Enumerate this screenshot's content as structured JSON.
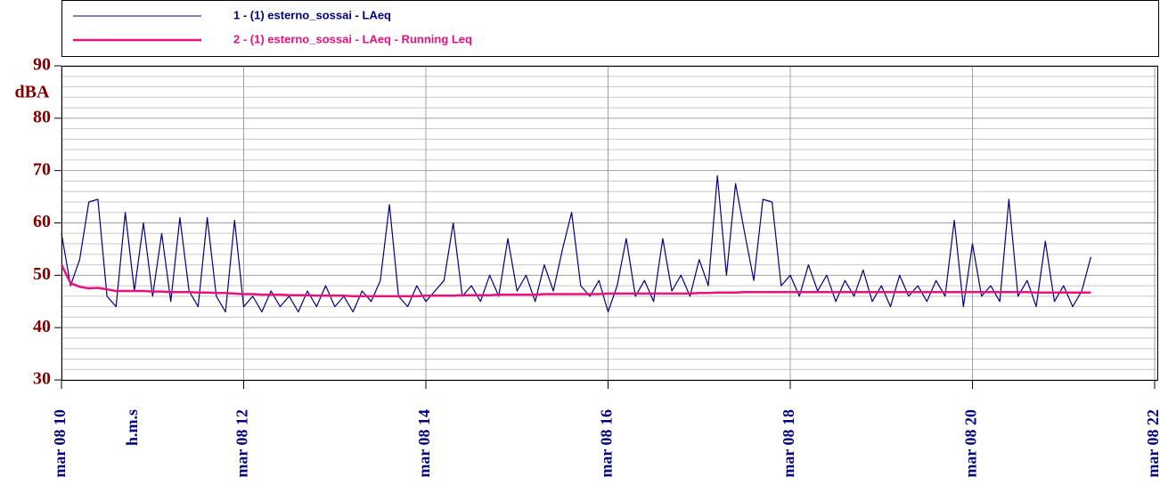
{
  "chart_data": {
    "type": "line",
    "ylabel": "dBA",
    "xlabel": "h.m.s",
    "x": [
      10,
      10.1,
      10.2,
      10.3,
      10.4,
      10.5,
      10.6,
      10.7,
      10.8,
      10.9,
      11,
      11.1,
      11.2,
      11.3,
      11.4,
      11.5,
      11.6,
      11.7,
      11.8,
      11.9,
      12,
      12.1,
      12.2,
      12.3,
      12.4,
      12.5,
      12.6,
      12.7,
      12.8,
      12.9,
      13,
      13.1,
      13.2,
      13.3,
      13.4,
      13.5,
      13.6,
      13.7,
      13.8,
      13.9,
      14,
      14.1,
      14.2,
      14.3,
      14.4,
      14.5,
      14.6,
      14.7,
      14.8,
      14.9,
      15,
      15.1,
      15.2,
      15.3,
      15.4,
      15.5,
      15.6,
      15.7,
      15.8,
      15.9,
      16,
      16.1,
      16.2,
      16.3,
      16.4,
      16.5,
      16.6,
      16.7,
      16.8,
      16.9,
      17,
      17.1,
      17.2,
      17.3,
      17.4,
      17.5,
      17.6,
      17.7,
      17.8,
      17.9,
      18,
      18.1,
      18.2,
      18.3,
      18.4,
      18.5,
      18.6,
      18.7,
      18.8,
      18.9,
      19,
      19.1,
      19.2,
      19.3,
      19.4,
      19.5,
      19.6,
      19.7,
      19.8,
      19.9,
      20,
      20.1,
      20.2,
      20.3,
      20.4,
      20.5,
      20.6,
      20.7,
      20.8,
      20.9,
      21,
      21.1,
      21.2,
      21.3
    ],
    "series": [
      {
        "name": "1 - (1) esterno_sossai - LAeq",
        "color": "#000080",
        "values": [
          58,
          48,
          53,
          64,
          64.5,
          46,
          44,
          62,
          47,
          60,
          46,
          58,
          45,
          61,
          47,
          44,
          61,
          46,
          43,
          60.5,
          44,
          46,
          43,
          47,
          44,
          46,
          43,
          47,
          44,
          48,
          44,
          46,
          43,
          47,
          45,
          49,
          63.5,
          46,
          44,
          48,
          45,
          47,
          49,
          60,
          46,
          48,
          45,
          50,
          46,
          57,
          47,
          50,
          45,
          52,
          47,
          55,
          62,
          48,
          46,
          49,
          43,
          48,
          57,
          46,
          49,
          45,
          57,
          47,
          50,
          46,
          53,
          48,
          69,
          50,
          67.5,
          58,
          49,
          64.5,
          64,
          48,
          50,
          46,
          52,
          47,
          50,
          45,
          49,
          46,
          51,
          45,
          48,
          44,
          50,
          46,
          48,
          45,
          49,
          46,
          60.5,
          44,
          56,
          46,
          48,
          45,
          64.5,
          46,
          49,
          44,
          56.5,
          45,
          48,
          44,
          47,
          53.5
        ]
      },
      {
        "name": "2 - (1) esterno_sossai - LAeq - Running Leq",
        "color": "#e8117f",
        "values": [
          52,
          48.5,
          47.8,
          47.5,
          47.6,
          47.3,
          47,
          47,
          47,
          47,
          46.9,
          46.9,
          46.8,
          46.8,
          46.8,
          46.7,
          46.7,
          46.6,
          46.6,
          46.5,
          46.4,
          46.4,
          46.3,
          46.3,
          46.3,
          46.2,
          46.2,
          46.2,
          46.1,
          46.1,
          46.1,
          46.1,
          46,
          46,
          46,
          46,
          46,
          46,
          46,
          46,
          46.1,
          46.1,
          46.1,
          46.1,
          46.2,
          46.2,
          46.2,
          46.2,
          46.3,
          46.3,
          46.3,
          46.3,
          46.3,
          46.4,
          46.4,
          46.4,
          46.4,
          46.4,
          46.4,
          46.4,
          46.5,
          46.5,
          46.5,
          46.5,
          46.5,
          46.5,
          46.5,
          46.5,
          46.5,
          46.5,
          46.6,
          46.6,
          46.7,
          46.7,
          46.7,
          46.8,
          46.8,
          46.8,
          46.8,
          46.8,
          46.8,
          46.8,
          46.8,
          46.8,
          46.8,
          46.8,
          46.8,
          46.8,
          46.8,
          46.8,
          46.8,
          46.8,
          46.8,
          46.8,
          46.8,
          46.8,
          46.8,
          46.8,
          46.8,
          46.8,
          46.8,
          46.8,
          46.8,
          46.8,
          46.8,
          46.8,
          46.8,
          46.7,
          46.7,
          46.7,
          46.7,
          46.7,
          46.7,
          46.7
        ]
      }
    ],
    "xlim": [
      10,
      22
    ],
    "xticks": [
      {
        "value": 10,
        "label": "mar 08 10"
      },
      {
        "value": 12,
        "label": "mar 08 12"
      },
      {
        "value": 14,
        "label": "mar 08 14"
      },
      {
        "value": 16,
        "label": "mar 08 16"
      },
      {
        "value": 18,
        "label": "mar 08 18"
      },
      {
        "value": 20,
        "label": "mar 08 20"
      },
      {
        "value": 22,
        "label": "mar 08 22"
      }
    ],
    "ylim": [
      30,
      90
    ],
    "yticks": [
      30,
      40,
      50,
      60,
      70,
      80,
      90
    ],
    "yminor_ticks": [
      32,
      34,
      36,
      38,
      42,
      44,
      46,
      48,
      52,
      54,
      56,
      58,
      62,
      64,
      66,
      68,
      72,
      74,
      76,
      78,
      82,
      84,
      86,
      88
    ],
    "grid": true,
    "legend": "top"
  }
}
